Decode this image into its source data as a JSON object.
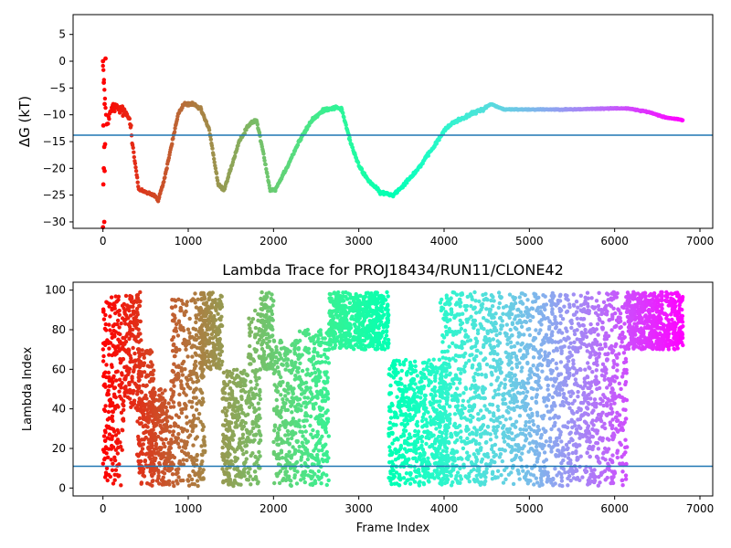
{
  "chart_data": [
    {
      "type": "scatter",
      "title": "",
      "xlabel": "",
      "ylabel": "ΔG (kT)",
      "xlim": [
        -350,
        7150
      ],
      "ylim": [
        -31.2,
        8.7
      ],
      "xticks": [
        0,
        1000,
        2000,
        3000,
        4000,
        5000,
        6000,
        7000
      ],
      "yticks": [
        5,
        0,
        -5,
        -10,
        -15,
        -20,
        -25,
        -30
      ],
      "hline": {
        "y": -13.8,
        "color": "#1f77b4"
      },
      "colormap": "rainbow",
      "frames": 6800,
      "curve": [
        [
          0,
          0
        ],
        [
          20,
          -6
        ],
        [
          40,
          -12
        ],
        [
          80,
          -10
        ],
        [
          120,
          -8.5
        ],
        [
          200,
          -9
        ],
        [
          280,
          -10
        ],
        [
          320,
          -11
        ],
        [
          360,
          -17
        ],
        [
          420,
          -24
        ],
        [
          520,
          -24.5
        ],
        [
          600,
          -25
        ],
        [
          650,
          -26
        ],
        [
          720,
          -22
        ],
        [
          800,
          -16
        ],
        [
          880,
          -10
        ],
        [
          950,
          -8
        ],
        [
          1050,
          -8
        ],
        [
          1150,
          -9
        ],
        [
          1250,
          -13
        ],
        [
          1350,
          -23
        ],
        [
          1420,
          -24
        ],
        [
          1500,
          -20
        ],
        [
          1600,
          -15
        ],
        [
          1700,
          -12
        ],
        [
          1800,
          -11
        ],
        [
          1880,
          -17
        ],
        [
          1960,
          -24
        ],
        [
          2020,
          -24
        ],
        [
          2150,
          -20
        ],
        [
          2300,
          -15
        ],
        [
          2450,
          -11
        ],
        [
          2600,
          -9
        ],
        [
          2750,
          -8.6
        ],
        [
          2800,
          -9
        ],
        [
          2900,
          -15
        ],
        [
          3000,
          -19.5
        ],
        [
          3100,
          -22
        ],
        [
          3250,
          -24.5
        ],
        [
          3400,
          -25
        ],
        [
          3500,
          -23.5
        ],
        [
          3700,
          -20
        ],
        [
          3900,
          -15.5
        ],
        [
          4000,
          -13
        ],
        [
          4100,
          -11.5
        ],
        [
          4300,
          -10
        ],
        [
          4450,
          -9
        ],
        [
          4550,
          -8
        ],
        [
          4700,
          -9
        ],
        [
          5000,
          -9
        ],
        [
          5500,
          -9
        ],
        [
          6000,
          -8.8
        ],
        [
          6150,
          -8.8
        ],
        [
          6400,
          -9.5
        ],
        [
          6600,
          -10.5
        ],
        [
          6800,
          -11
        ]
      ],
      "early_scatter": [
        [
          0,
          0
        ],
        [
          30,
          0.5
        ],
        [
          10,
          -4
        ],
        [
          20,
          -8
        ],
        [
          5,
          -12
        ],
        [
          15,
          -16
        ],
        [
          25,
          -15.5
        ],
        [
          10,
          -20
        ],
        [
          20,
          -20.5
        ],
        [
          5,
          -23
        ],
        [
          15,
          -30
        ],
        [
          0,
          -31
        ]
      ]
    },
    {
      "type": "scatter",
      "title": "Lambda Trace for PROJ18434/RUN11/CLONE42",
      "xlabel": "Frame Index",
      "ylabel": "Lambda Index",
      "xlim": [
        -350,
        7150
      ],
      "ylim": [
        -4,
        104
      ],
      "xticks": [
        0,
        1000,
        2000,
        3000,
        4000,
        5000,
        6000,
        7000
      ],
      "yticks": [
        0,
        20,
        40,
        60,
        80,
        100
      ],
      "hline": {
        "y": 11,
        "color": "#1f77b4"
      },
      "colormap": "rainbow",
      "frames": 6800,
      "clusters": [
        {
          "x": [
            0,
            40
          ],
          "y": [
            5,
            97
          ]
        },
        {
          "x": [
            40,
            250
          ],
          "y": [
            1,
            98
          ]
        },
        {
          "x": [
            250,
            450
          ],
          "y": [
            40,
            99
          ]
        },
        {
          "x": [
            400,
            600
          ],
          "y": [
            1,
            70
          ]
        },
        {
          "x": [
            550,
            800
          ],
          "y": [
            1,
            50
          ]
        },
        {
          "x": [
            800,
            1200
          ],
          "y": [
            1,
            99
          ]
        },
        {
          "x": [
            1150,
            1400
          ],
          "y": [
            60,
            99
          ]
        },
        {
          "x": [
            1400,
            1700
          ],
          "y": [
            1,
            60
          ]
        },
        {
          "x": [
            1700,
            1850
          ],
          "y": [
            1,
            90
          ]
        },
        {
          "x": [
            1850,
            2000
          ],
          "y": [
            60,
            99
          ]
        },
        {
          "x": [
            2000,
            2300
          ],
          "y": [
            1,
            75
          ]
        },
        {
          "x": [
            2300,
            2650
          ],
          "y": [
            1,
            80
          ]
        },
        {
          "x": [
            2650,
            3350
          ],
          "y": [
            70,
            99
          ]
        },
        {
          "x": [
            3350,
            4050
          ],
          "y": [
            1,
            65
          ]
        },
        {
          "x": [
            3950,
            4800
          ],
          "y": [
            1,
            99
          ]
        },
        {
          "x": [
            4800,
            5600
          ],
          "y": [
            1,
            99
          ]
        },
        {
          "x": [
            5600,
            6150
          ],
          "y": [
            1,
            99
          ]
        },
        {
          "x": [
            6150,
            6800
          ],
          "y": [
            70,
            99
          ]
        }
      ]
    }
  ]
}
